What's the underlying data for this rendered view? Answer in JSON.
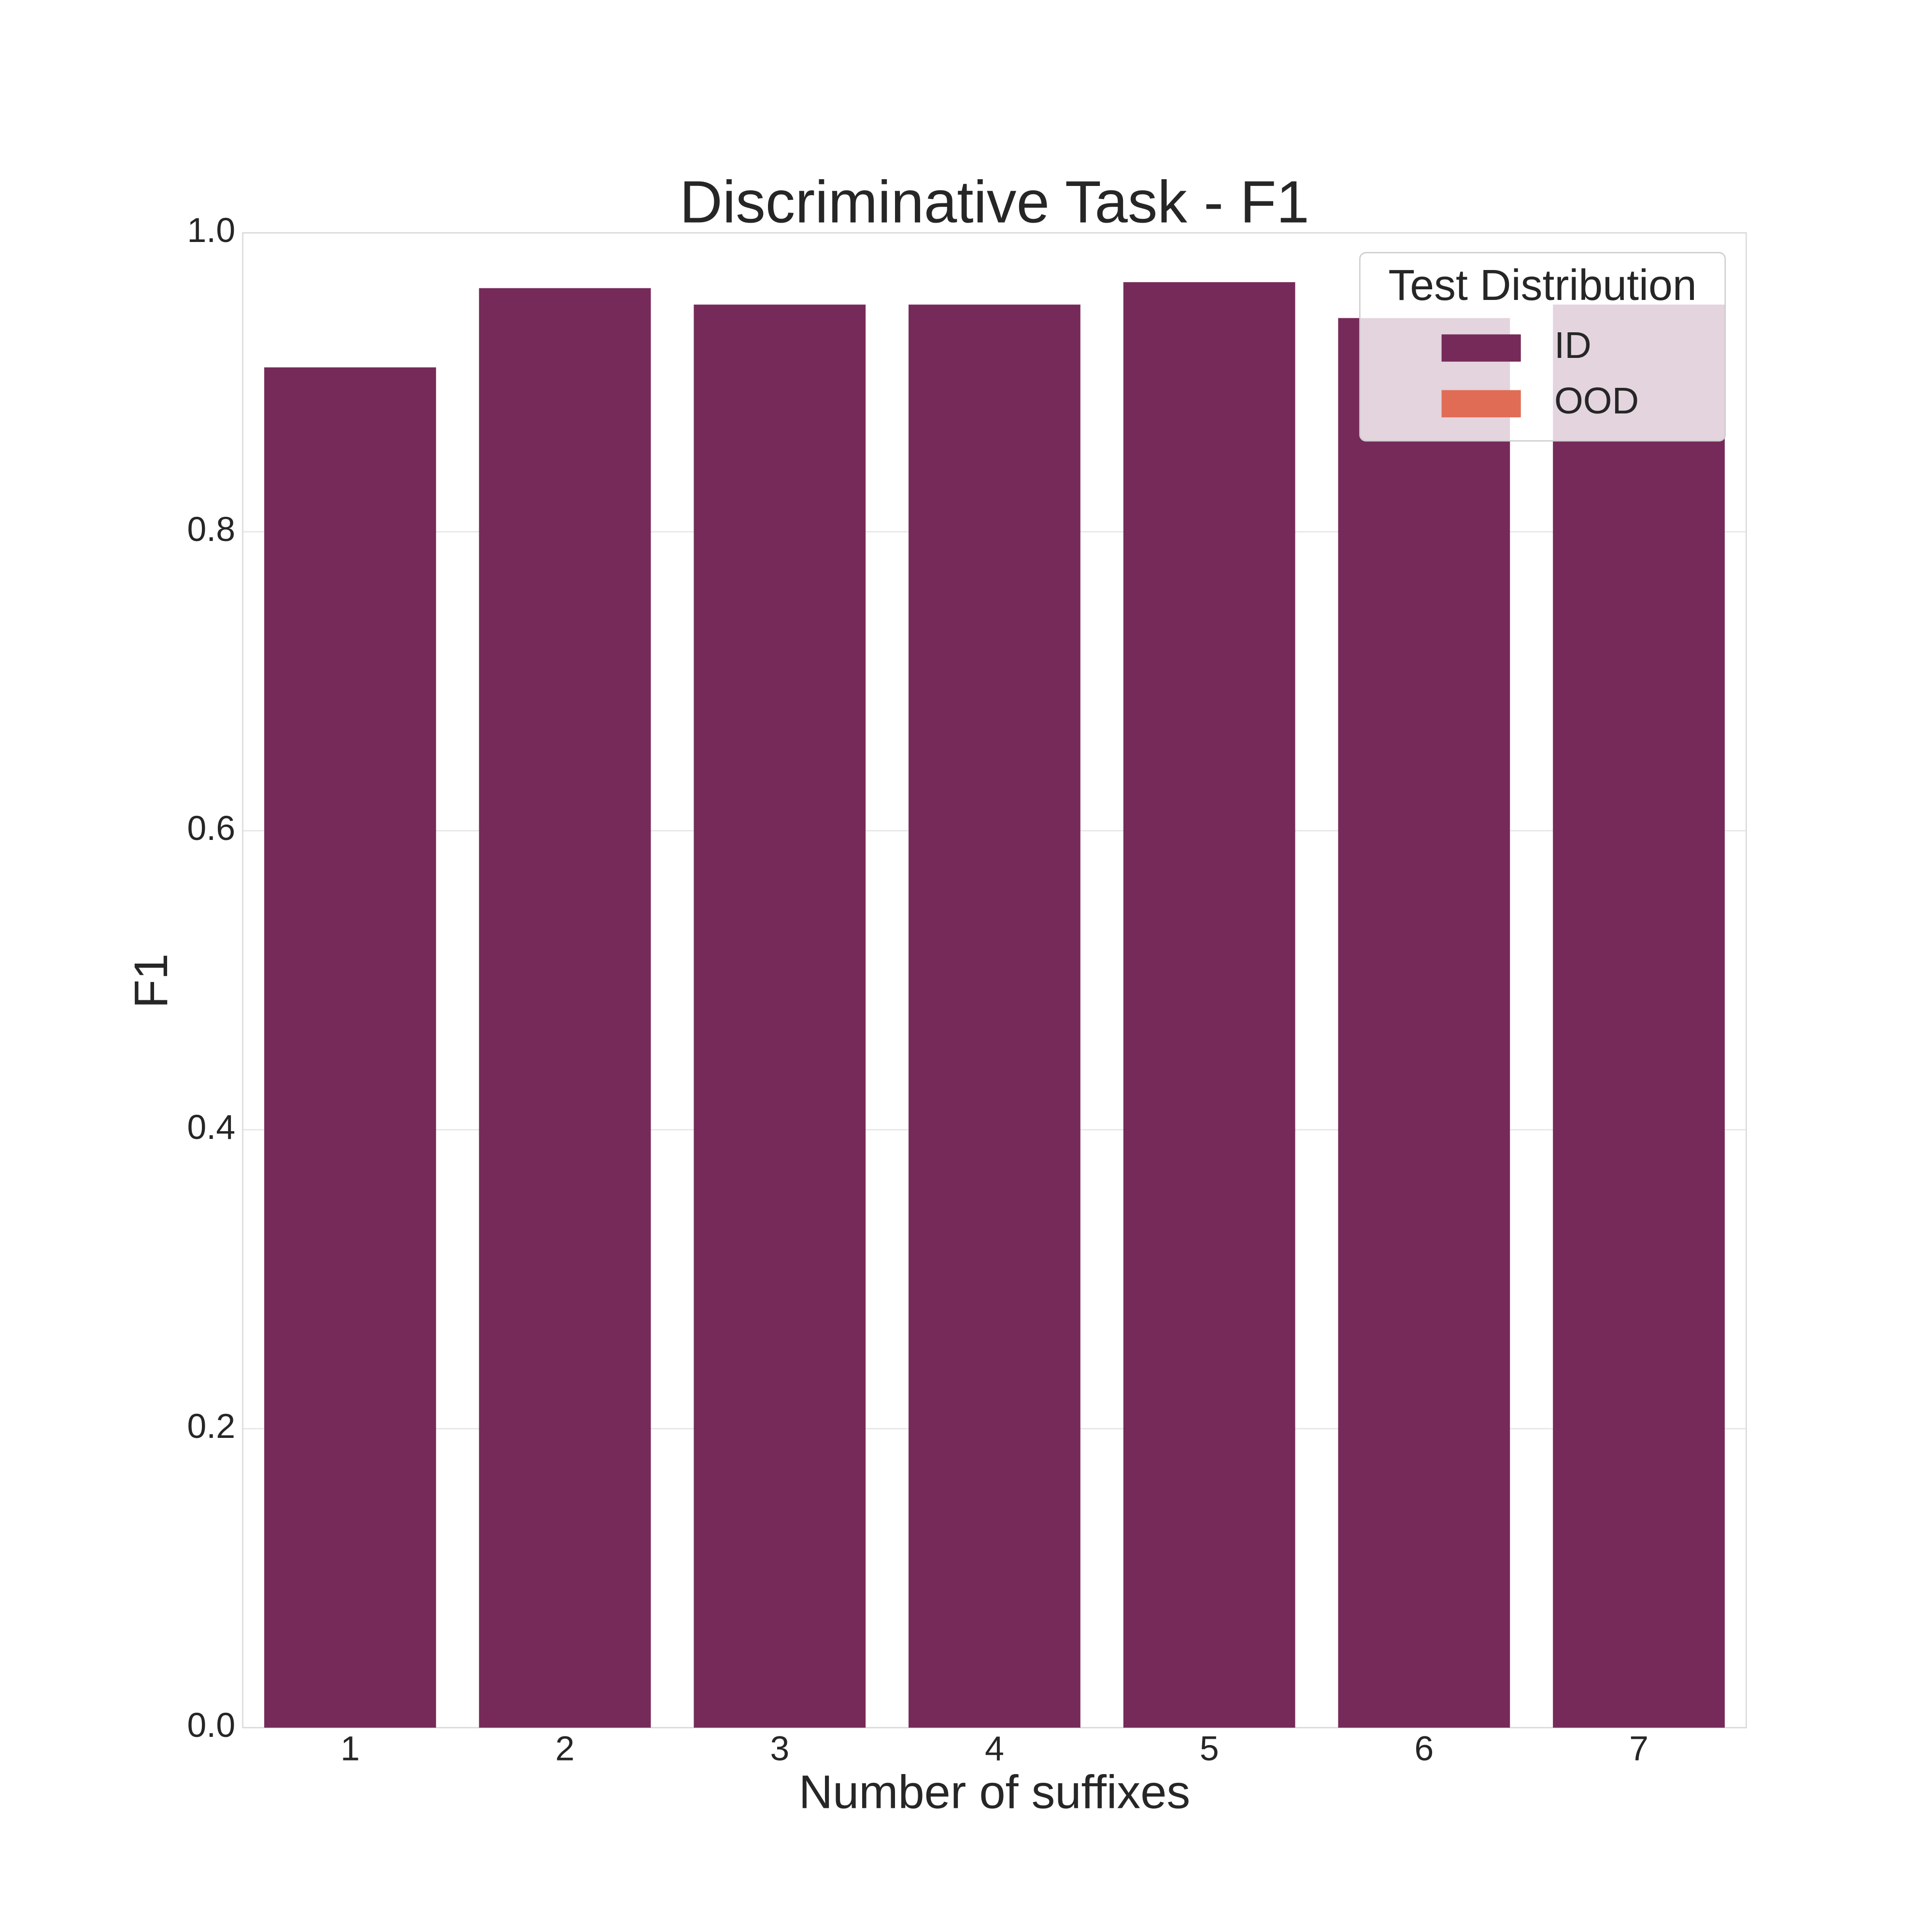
{
  "chart_data": {
    "type": "bar",
    "title": "Discriminative Task - F1",
    "x_label": "Number of suffixes",
    "y_label": "F1",
    "categories": [
      "1",
      "2",
      "3",
      "4",
      "5",
      "6",
      "7"
    ],
    "series": [
      {
        "name": "ID",
        "color": "#762a5a",
        "values": [
          0.91,
          0.963,
          0.952,
          0.952,
          0.967,
          0.943,
          0.952
        ]
      },
      {
        "name": "OOD",
        "color": "#e06c55",
        "values": [
          null,
          null,
          null,
          null,
          null,
          null,
          null
        ]
      }
    ],
    "ylim": [
      0,
      1
    ],
    "yticks": [
      {
        "value": 0,
        "label": "0.0"
      },
      {
        "value": 0.2,
        "label": "0.2"
      },
      {
        "value": 0.4,
        "label": "0.4"
      },
      {
        "value": 0.6,
        "label": "0.6"
      },
      {
        "value": 0.8,
        "label": "0.8"
      },
      {
        "value": 1,
        "label": "1.0"
      }
    ],
    "grid": true,
    "legend": {
      "title": "Test Distribution",
      "position": "upper right"
    }
  }
}
